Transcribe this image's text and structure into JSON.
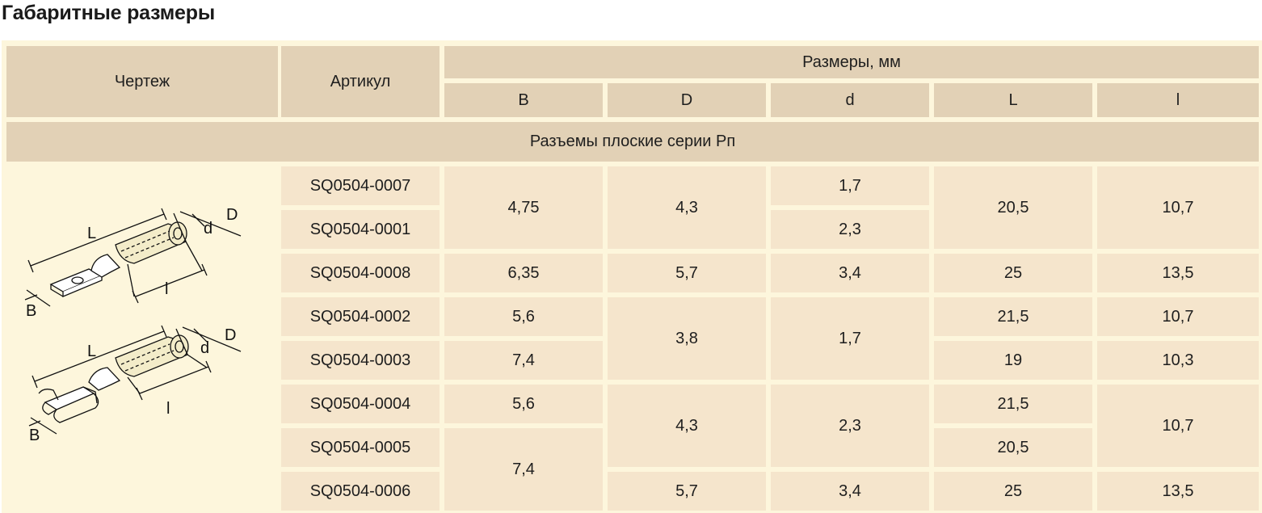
{
  "title": "Габаритные размеры",
  "header": {
    "drawing": "Чертеж",
    "article": "Артикул",
    "sizes": "Размеры, мм",
    "col_B": "B",
    "col_D": "D",
    "col_d": "d",
    "col_L": "L",
    "col_l": "l"
  },
  "section": "Разъемы плоские серии Рп",
  "rows": [
    {
      "article": "SQ0504-0007"
    },
    {
      "article": "SQ0504-0001"
    },
    {
      "article": "SQ0504-0008"
    },
    {
      "article": "SQ0504-0002"
    },
    {
      "article": "SQ0504-0003"
    },
    {
      "article": "SQ0504-0004"
    },
    {
      "article": "SQ0504-0005"
    },
    {
      "article": "SQ0504-0006"
    }
  ],
  "values": {
    "B_0007_0001": "4,75",
    "B_0008": "6,35",
    "B_0002": "5,6",
    "B_0003": "7,4",
    "B_0004": "5,6",
    "B_0005_0006": "7,4",
    "D_0007_0001": "4,3",
    "D_0008": "5,7",
    "D_0002_0003": "3,8",
    "D_0004_0005": "4,3",
    "D_0006": "5,7",
    "d_0007": "1,7",
    "d_0001": "2,3",
    "d_0008": "3,4",
    "d_0002_0003": "1,7",
    "d_0004_0005": "2,3",
    "d_0006": "3,4",
    "L_0007_0001": "20,5",
    "L_0008": "25",
    "L_0002": "21,5",
    "L_0003": "19",
    "L_0004": "21,5",
    "L_0005": "20,5",
    "L_0006": "25",
    "l_0007_0001": "10,7",
    "l_0008": "13,5",
    "l_0002": "10,7",
    "l_0003": "10,3",
    "l_0004_0005": "10,7",
    "l_0006": "13,5"
  },
  "drawing_labels": {
    "L": "L",
    "D": "D",
    "d": "d",
    "l": "l",
    "B": "B"
  },
  "colors": {
    "header_bg": "#e2d1b6",
    "cell_bg": "#f5e5cc",
    "frame_bg": "#fdf6dc",
    "insulation": "#f3ecc9"
  }
}
